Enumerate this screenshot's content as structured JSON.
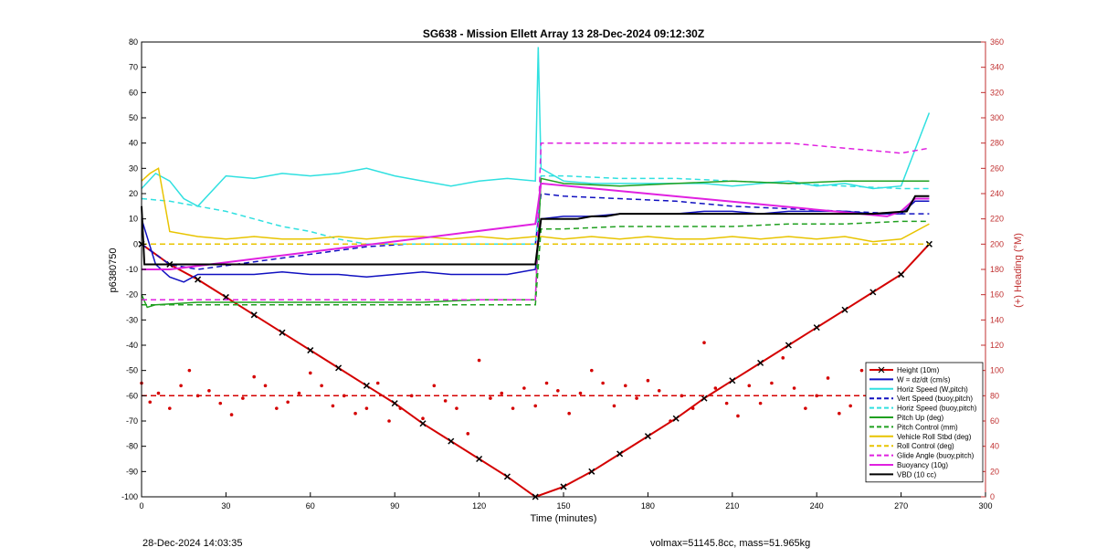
{
  "chart_data": {
    "type": "line",
    "title": "SG638 - Mission Ellett Array 13 28-Dec-2024 09:12:30Z",
    "xlabel": "Time (minutes)",
    "ylabel": "p6380750",
    "y2label": "(+) Heading (°M)",
    "xlim": [
      0,
      300
    ],
    "ylim": [
      -100,
      80
    ],
    "y2lim": [
      0,
      360
    ],
    "xticks": [
      "0",
      "30",
      "60",
      "90",
      "120",
      "150",
      "180",
      "210",
      "240",
      "270",
      "300"
    ],
    "yticks": [
      "-100",
      "-90",
      "-80",
      "-70",
      "-60",
      "-50",
      "-40",
      "-30",
      "-20",
      "-10",
      "0",
      "10",
      "20",
      "30",
      "40",
      "50",
      "60",
      "70",
      "80"
    ],
    "y2ticks": [
      "0",
      "20",
      "40",
      "60",
      "80",
      "100",
      "120",
      "140",
      "160",
      "180",
      "200",
      "220",
      "240",
      "260",
      "280",
      "300",
      "320",
      "340",
      "360"
    ],
    "legend_position": "bottom-right",
    "colors": {
      "red": "#d40000",
      "blue": "#1010c0",
      "cyan": "#30e0e0",
      "green": "#20a020",
      "gold": "#e8c400",
      "magenta": "#e020e0",
      "black": "#000000",
      "axis_right": "#c03030"
    },
    "legend": [
      {
        "label": "Height (10m)",
        "color": "#d40000",
        "dash": false,
        "marker": "x"
      },
      {
        "label": "W = dz/dt (cm/s)",
        "color": "#1010c0",
        "dash": false,
        "marker": ""
      },
      {
        "label": "Horiz Speed (W,pitch)",
        "color": "#30e0e0",
        "dash": false,
        "marker": ""
      },
      {
        "label": "Vert Speed (buoy,pitch)",
        "color": "#1010c0",
        "dash": true,
        "marker": ""
      },
      {
        "label": "Horiz Speed (buoy,pitch)",
        "color": "#30e0e0",
        "dash": true,
        "marker": ""
      },
      {
        "label": "Pitch Up (deg)",
        "color": "#20a020",
        "dash": false,
        "marker": ""
      },
      {
        "label": "Pitch Control (mm)",
        "color": "#20a020",
        "dash": true,
        "marker": ""
      },
      {
        "label": "Vehicle Roll Stbd (deg)",
        "color": "#e8c400",
        "dash": false,
        "marker": ""
      },
      {
        "label": "Roll Control (deg)",
        "color": "#e8c400",
        "dash": true,
        "marker": ""
      },
      {
        "label": "Glide Angle (buoy,pitch)",
        "color": "#e020e0",
        "dash": true,
        "marker": ""
      },
      {
        "label": "Buoyancy (10g)",
        "color": "#e020e0",
        "dash": false,
        "marker": ""
      },
      {
        "label": "VBD (10 cc)",
        "color": "#000000",
        "dash": false,
        "marker": ""
      }
    ],
    "series": [
      {
        "name": "Height (10m)",
        "color": "#d40000",
        "dash": false,
        "width": 2,
        "markers": true,
        "x": [
          0,
          10,
          20,
          30,
          40,
          50,
          60,
          70,
          80,
          90,
          100,
          110,
          120,
          130,
          140,
          150,
          160,
          170,
          180,
          190,
          200,
          210,
          220,
          230,
          240,
          250,
          260,
          270,
          280
        ],
        "y": [
          0,
          -8,
          -14,
          -21,
          -28,
          -35,
          -42,
          -49,
          -56,
          -63,
          -71,
          -78,
          -85,
          -92,
          -100,
          -96,
          -90,
          -83,
          -76,
          -69,
          -61,
          -54,
          -47,
          -40,
          -33,
          -26,
          -19,
          -12,
          0
        ]
      },
      {
        "name": "W = dz/dt (cm/s)",
        "color": "#1010c0",
        "dash": false,
        "width": 1.5,
        "markers": false,
        "x": [
          0,
          5,
          10,
          15,
          20,
          30,
          40,
          50,
          60,
          70,
          80,
          90,
          100,
          110,
          120,
          130,
          140,
          142,
          150,
          160,
          170,
          180,
          190,
          200,
          210,
          220,
          230,
          240,
          250,
          260,
          270,
          275,
          280
        ],
        "y": [
          10,
          -8,
          -13,
          -15,
          -12,
          -12,
          -12,
          -11,
          -12,
          -12,
          -13,
          -12,
          -11,
          -12,
          -12,
          -12,
          -10,
          10,
          11,
          11,
          12,
          12,
          12,
          13,
          13,
          12,
          13,
          13,
          13,
          12,
          12,
          17,
          17
        ]
      },
      {
        "name": "Horiz Speed (W,pitch)",
        "color": "#30e0e0",
        "dash": false,
        "width": 1.5,
        "markers": false,
        "x": [
          0,
          5,
          10,
          15,
          20,
          30,
          40,
          50,
          60,
          70,
          80,
          90,
          100,
          110,
          120,
          130,
          140,
          141,
          142,
          150,
          160,
          170,
          180,
          190,
          200,
          210,
          220,
          230,
          240,
          250,
          260,
          270,
          280
        ],
        "y": [
          22,
          28,
          25,
          18,
          15,
          27,
          26,
          28,
          27,
          28,
          30,
          27,
          25,
          23,
          25,
          26,
          25,
          78,
          30,
          25,
          24,
          24,
          24,
          24,
          24,
          23,
          24,
          25,
          23,
          24,
          22,
          23,
          52
        ]
      },
      {
        "name": "Vert Speed (buoy,pitch)",
        "color": "#1010c0",
        "dash": true,
        "width": 1.5,
        "markers": false,
        "x": [
          0,
          10,
          20,
          40,
          60,
          80,
          95,
          100,
          140,
          142,
          150,
          170,
          190,
          210,
          230,
          250,
          270,
          280
        ],
        "y": [
          0,
          -8,
          -10,
          -7,
          -4,
          -1,
          0,
          0,
          0,
          20,
          19,
          18,
          17,
          15,
          14,
          13,
          12,
          12
        ]
      },
      {
        "name": "Horiz Speed (buoy,pitch)",
        "color": "#30e0e0",
        "dash": true,
        "width": 1.5,
        "markers": false,
        "x": [
          0,
          10,
          20,
          30,
          40,
          50,
          60,
          70,
          80,
          140,
          142,
          150,
          170,
          190,
          210,
          230,
          250,
          270,
          280
        ],
        "y": [
          18,
          17,
          15,
          13,
          10,
          7,
          5,
          2,
          0,
          0,
          27,
          27,
          26,
          26,
          25,
          24,
          23,
          22,
          22
        ]
      },
      {
        "name": "Pitch Up (deg)",
        "color": "#20a020",
        "dash": false,
        "width": 1.5,
        "markers": false,
        "x": [
          0,
          2,
          5,
          20,
          40,
          60,
          80,
          100,
          120,
          140,
          142,
          150,
          170,
          190,
          210,
          230,
          250,
          270,
          280
        ],
        "y": [
          -20,
          -25,
          -24,
          -23,
          -23,
          -23,
          -23,
          -23,
          -22,
          -22,
          26,
          24,
          23,
          24,
          25,
          24,
          25,
          25,
          25
        ]
      },
      {
        "name": "Pitch Control (mm)",
        "color": "#20a020",
        "dash": true,
        "width": 1.5,
        "markers": false,
        "x": [
          0,
          140,
          142,
          150,
          170,
          190,
          210,
          230,
          250,
          270,
          280
        ],
        "y": [
          -24,
          -24,
          6,
          6,
          7,
          7,
          7,
          8,
          8,
          9,
          9
        ]
      },
      {
        "name": "Vehicle Roll Stbd (deg)",
        "color": "#e8c400",
        "dash": false,
        "width": 1.5,
        "markers": false,
        "x": [
          0,
          3,
          6,
          10,
          20,
          30,
          40,
          50,
          60,
          70,
          80,
          90,
          100,
          110,
          120,
          130,
          140,
          142,
          150,
          160,
          170,
          180,
          190,
          200,
          210,
          220,
          230,
          240,
          250,
          260,
          270,
          280
        ],
        "y": [
          25,
          28,
          30,
          5,
          3,
          2,
          3,
          2,
          2,
          3,
          2,
          3,
          3,
          2,
          3,
          2,
          3,
          3,
          2,
          3,
          2,
          3,
          2,
          2,
          3,
          2,
          3,
          2,
          3,
          1,
          2,
          8
        ]
      },
      {
        "name": "Roll Control (deg)",
        "color": "#e8c400",
        "dash": true,
        "width": 1.5,
        "markers": false,
        "x": [
          0,
          280
        ],
        "y": [
          0,
          0
        ]
      },
      {
        "name": "Glide Angle (buoy,pitch)",
        "color": "#e020e0",
        "dash": true,
        "width": 1.5,
        "markers": false,
        "x": [
          0,
          140,
          142,
          150,
          170,
          190,
          210,
          230,
          250,
          270,
          280
        ],
        "y": [
          -22,
          -22,
          40,
          40,
          40,
          40,
          40,
          40,
          38,
          36,
          38
        ]
      },
      {
        "name": "Buoyancy (10g)",
        "color": "#e020e0",
        "dash": false,
        "width": 2,
        "markers": false,
        "x": [
          0,
          10,
          140,
          142,
          265,
          270,
          275,
          280
        ],
        "y": [
          -10,
          -10,
          8,
          24,
          11,
          13,
          18,
          18
        ]
      },
      {
        "name": "VBD (10 cc)",
        "color": "#000000",
        "dash": false,
        "width": 2,
        "markers": false,
        "x": [
          0,
          1,
          140,
          142,
          155,
          160,
          165,
          170,
          260,
          272,
          275,
          280
        ],
        "y": [
          15,
          -8,
          -8,
          10,
          10,
          11,
          11,
          12,
          12,
          13,
          19,
          19
        ]
      },
      {
        "name": "Heading (°M)",
        "axis": "right",
        "color": "#d40000",
        "dash": false,
        "width": 0,
        "scatter": true,
        "x": [
          0,
          3,
          6,
          10,
          14,
          17,
          20,
          24,
          28,
          32,
          36,
          40,
          44,
          48,
          52,
          56,
          60,
          64,
          68,
          72,
          76,
          80,
          84,
          88,
          92,
          96,
          100,
          104,
          108,
          112,
          116,
          120,
          124,
          128,
          132,
          136,
          140,
          144,
          148,
          152,
          156,
          160,
          164,
          168,
          172,
          176,
          180,
          184,
          188,
          192,
          196,
          200,
          204,
          208,
          212,
          216,
          220,
          224,
          228,
          232,
          236,
          240,
          244,
          248,
          252,
          256,
          260,
          264,
          268,
          272,
          276,
          280
        ],
        "y": [
          90,
          75,
          82,
          70,
          88,
          100,
          80,
          84,
          74,
          65,
          78,
          95,
          88,
          70,
          75,
          82,
          98,
          88,
          72,
          80,
          66,
          70,
          90,
          60,
          70,
          80,
          62,
          88,
          76,
          70,
          50,
          108,
          78,
          82,
          70,
          86,
          72,
          90,
          84,
          66,
          82,
          100,
          90,
          72,
          88,
          78,
          92,
          84,
          60,
          80,
          70,
          122,
          86,
          74,
          64,
          88,
          74,
          90,
          110,
          86,
          70,
          80,
          94,
          66,
          72,
          100,
          76,
          88,
          70,
          80,
          96,
          85
        ]
      },
      {
        "name": "Heading Target",
        "axis": "right",
        "color": "#d40000",
        "dash": true,
        "width": 1.5,
        "markers": false,
        "x": [
          0,
          280
        ],
        "y": [
          80,
          80
        ]
      }
    ]
  },
  "footer": {
    "left": "28-Dec-2024 14:03:35",
    "right": "volmax=51145.8cc, mass=51.965kg"
  }
}
